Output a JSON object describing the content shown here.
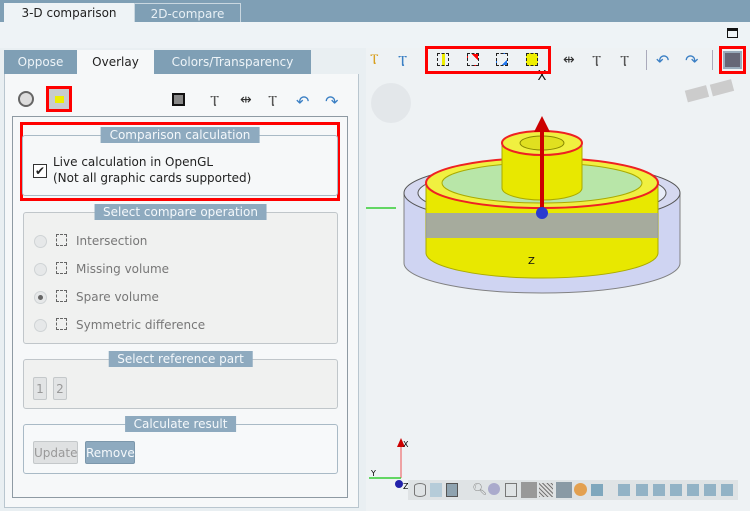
{
  "tabs": [
    {
      "label": "3-D comparison",
      "active": true
    },
    {
      "label": "2D-compare",
      "active": false
    }
  ],
  "subtabs": [
    {
      "label": "Oppose"
    },
    {
      "label": "Overlay",
      "active": true
    },
    {
      "label": "Colors/Transparency"
    }
  ],
  "comparison_calc": {
    "title": "Comparison calculation",
    "checkbox_line1": "Live calculation in OpenGL",
    "checkbox_line2": "(Not all graphic cards supported)",
    "checked": true
  },
  "compare_op": {
    "title": "Select compare operation",
    "options": [
      {
        "label": "Intersection"
      },
      {
        "label": "Missing volume"
      },
      {
        "label": "Spare volume",
        "selected": true
      },
      {
        "label": "Symmetric difference"
      }
    ]
  },
  "reference": {
    "title": "Select reference part",
    "buttons": [
      "1",
      "2"
    ]
  },
  "calc_result": {
    "title": "Calculate result",
    "update": "Update",
    "remove": "Remove"
  },
  "viewport": {
    "axis_x": "X",
    "axis_y": "Y",
    "axis_z": "Z"
  },
  "colors": {
    "accent": "#7f9fb5",
    "highlight": "#ff0000",
    "model_yellow": "#e8e800",
    "model_blue": "#9aa6e8"
  }
}
